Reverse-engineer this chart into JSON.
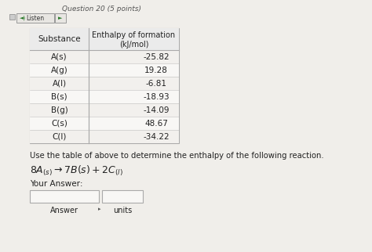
{
  "title_text": "Question 20 (5 points)",
  "header_col1": "Substance",
  "header_col2_line1": "Enthalpy of formation",
  "header_col2_line2": "(kJ/mol)",
  "substances": [
    "A(s)",
    "A(g)",
    "A(l)",
    "B(s)",
    "B(g)",
    "C(s)",
    "C(l)"
  ],
  "enthalpies": [
    "-25.82",
    "19.28",
    "-6.81",
    "-18.93",
    "-14.09",
    "48.67",
    "-34.22"
  ],
  "instruction": "Use the table of above to determine the enthalpy of the following reaction.",
  "your_answer_label": "Your Answer:",
  "answer_label": "Answer",
  "units_label": "units",
  "bg_color": "#f0eeea",
  "table_bg_header": "#f0eeea",
  "table_bg_row": "#f5f3f0",
  "table_border": "#aaaaaa",
  "text_color": "#222222",
  "btn_color": "#e8e6e2",
  "box_fill": "#f8f7f5",
  "title_color": "#555555",
  "page_bg": "#c8c4bc"
}
